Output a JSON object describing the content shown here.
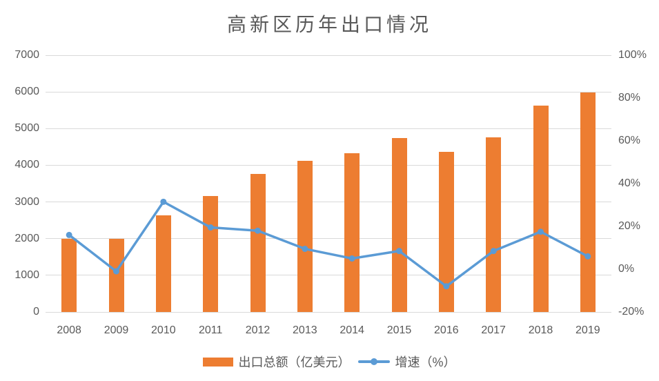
{
  "chart_data": {
    "type": "bar",
    "title": "高新区历年出口情况",
    "categories": [
      "2008",
      "2009",
      "2010",
      "2011",
      "2012",
      "2013",
      "2014",
      "2015",
      "2016",
      "2017",
      "2018",
      "2019"
    ],
    "series": [
      {
        "name": "出口总额（亿美元）",
        "type": "bar",
        "axis": "left",
        "color": "#ED7D31",
        "values": [
          2000,
          2000,
          2640,
          3170,
          3770,
          4130,
          4330,
          4740,
          4370,
          4760,
          5630,
          5980
        ]
      },
      {
        "name": "增速（%）",
        "type": "line",
        "axis": "right",
        "color": "#5B9BD5",
        "values": [
          16,
          -1,
          31.5,
          19.5,
          18,
          9.5,
          5,
          8.5,
          -8,
          8.5,
          17.5,
          6
        ]
      }
    ],
    "ylim_left": [
      0,
      7000
    ],
    "ytick_left": 1000,
    "left_tick_labels": [
      "0",
      "1000",
      "2000",
      "3000",
      "4000",
      "5000",
      "6000",
      "7000"
    ],
    "ylim_right": [
      -20,
      100
    ],
    "ytick_right": 20,
    "right_tick_labels": [
      "-20%",
      "0%",
      "20%",
      "40%",
      "60%",
      "80%",
      "100%"
    ],
    "grid": "horizontal",
    "grid_color": "#D9D9D9",
    "text_color": "#595959",
    "background": "#FFFFFF",
    "legend_position": "bottom"
  }
}
